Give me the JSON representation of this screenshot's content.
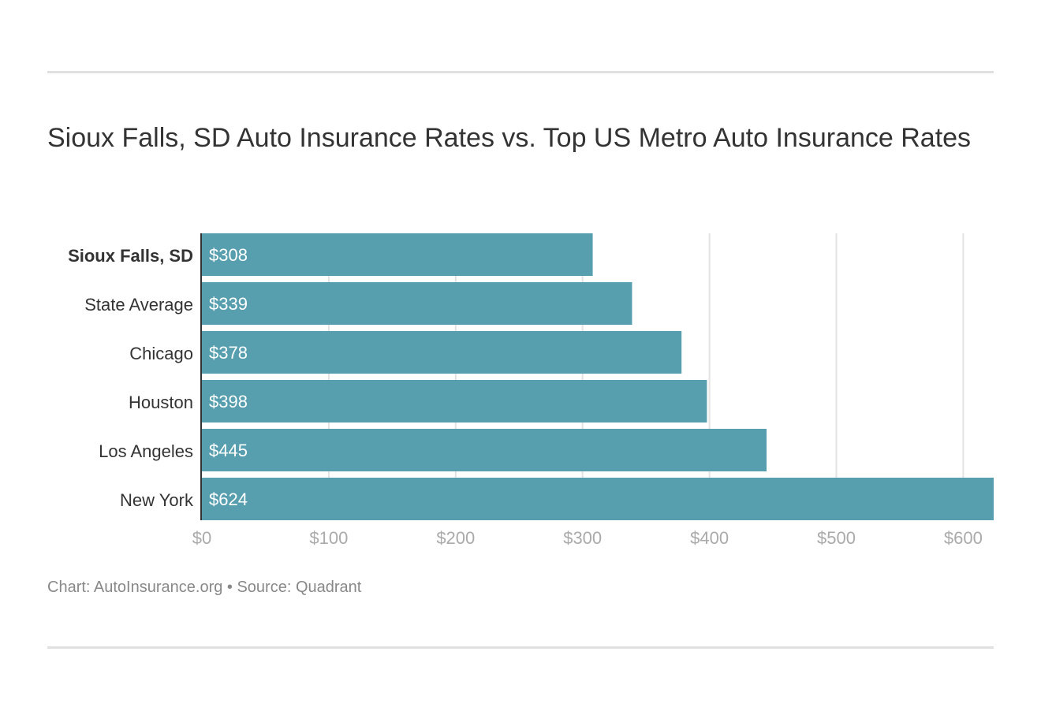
{
  "chart_data": {
    "type": "bar",
    "orientation": "horizontal",
    "title": "Sioux Falls, SD Auto Insurance Rates vs. Top US Metro Auto Insurance Rates",
    "categories": [
      "Sioux Falls, SD",
      "State Average",
      "Chicago",
      "Houston",
      "Los Angeles",
      "New York"
    ],
    "highlighted_category": "Sioux Falls, SD",
    "values": [
      308,
      339,
      378,
      398,
      445,
      624
    ],
    "value_labels": [
      "$308",
      "$339",
      "$378",
      "$398",
      "$445",
      "$624"
    ],
    "xlim": [
      0,
      624
    ],
    "xticks": [
      0,
      100,
      200,
      300,
      400,
      500,
      600
    ],
    "xtick_labels": [
      "$0",
      "$100",
      "$200",
      "$300",
      "$400",
      "$500",
      "$600"
    ],
    "xlabel": "",
    "ylabel": "",
    "grid": "vertical",
    "bar_color": "#579fae",
    "footer": "Chart: AutoInsurance.org • Source: Quadrant"
  }
}
